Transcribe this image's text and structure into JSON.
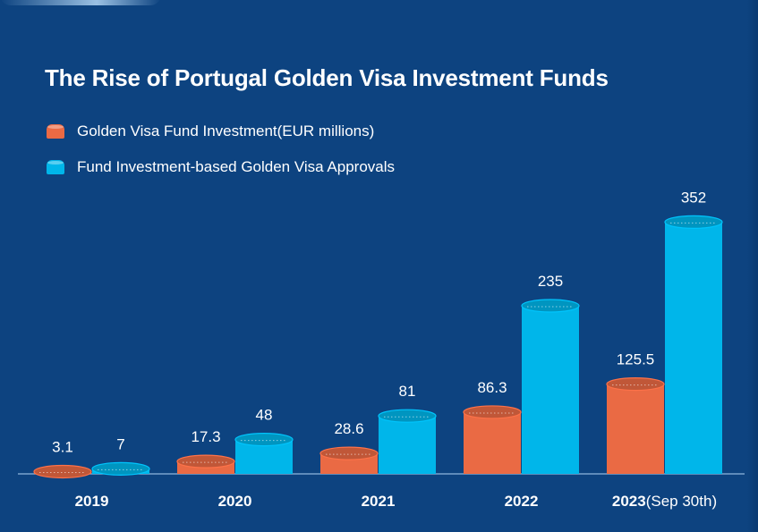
{
  "title": "The Rise of Portugal Golden Visa Investment Funds",
  "colors": {
    "background": "#0d4380",
    "investment": "#ea6a44",
    "approvals": "#00b6ea",
    "axis": "#8fb6dd"
  },
  "chart_data": {
    "type": "bar",
    "title": "The Rise of Portugal Golden Visa Investment Funds",
    "categories": [
      {
        "main": "2019",
        "suffix": ""
      },
      {
        "main": "2020",
        "suffix": ""
      },
      {
        "main": "2021",
        "suffix": ""
      },
      {
        "main": "2022",
        "suffix": ""
      },
      {
        "main": "2023",
        "suffix": "(Sep 30th)"
      }
    ],
    "series": [
      {
        "name": "Golden Visa Fund Investment(EUR millions)",
        "color": "#ea6a44",
        "values": [
          3.1,
          17.3,
          28.6,
          86.3,
          125.5
        ],
        "labels": [
          "3.1",
          "17.3",
          "28.6",
          "86.3",
          "125.5"
        ]
      },
      {
        "name": "Fund Investment-based Golden Visa Approvals",
        "color": "#00b6ea",
        "values": [
          7,
          48,
          81,
          235,
          352
        ],
        "labels": [
          "7",
          "48",
          "81",
          "235",
          "352"
        ]
      }
    ],
    "legend": "top-left",
    "grid": false,
    "bar_style": "cylinder"
  }
}
